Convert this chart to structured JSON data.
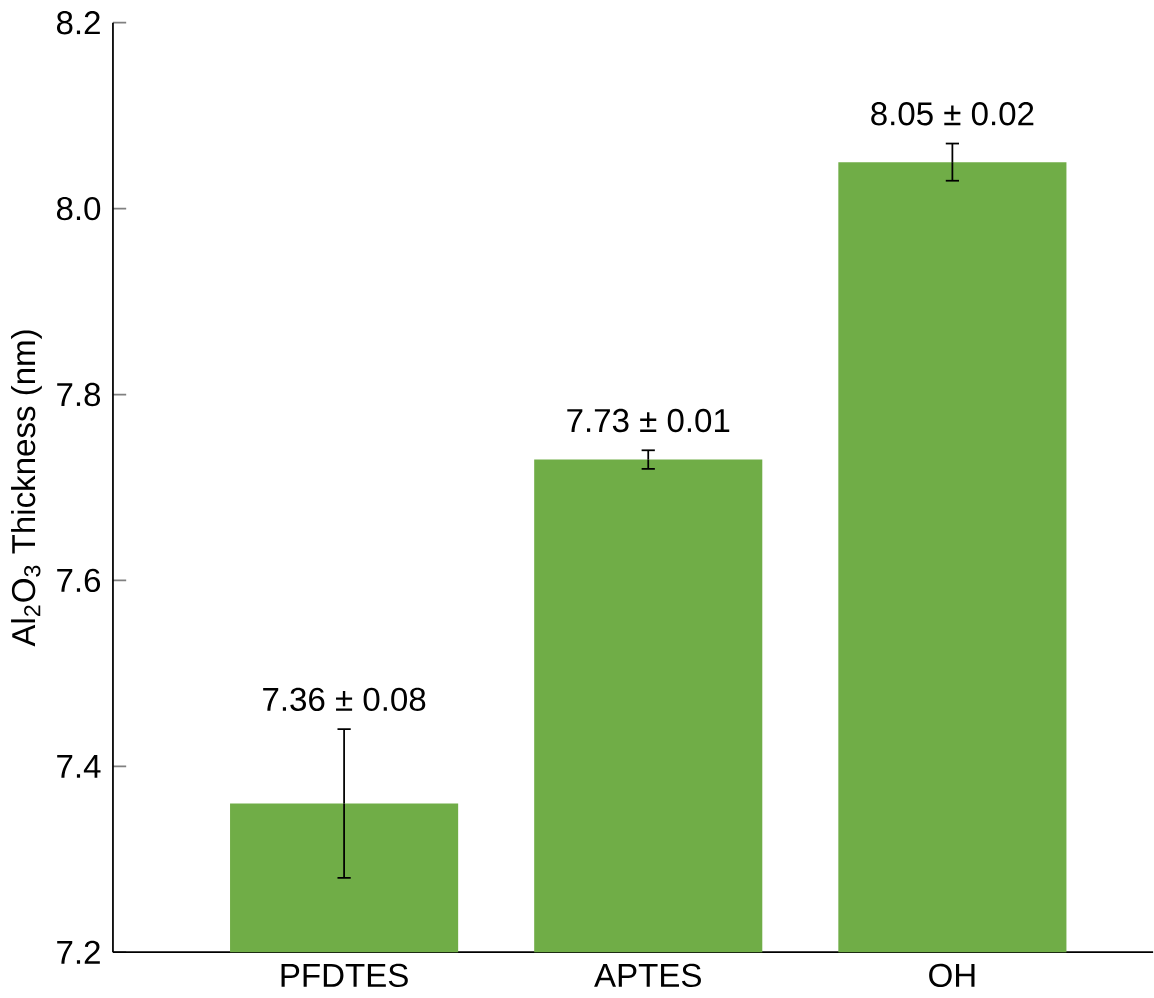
{
  "chart_data": {
    "type": "bar",
    "ylabel": "Al$_{2}$O$_{3}$ Thickness (nm)",
    "categories": [
      "PFDTES",
      "APTES",
      "OH"
    ],
    "values": [
      7.36,
      7.73,
      8.05
    ],
    "errors": [
      0.08,
      0.01,
      0.02
    ],
    "value_labels": [
      "7.36 ± 0.08",
      "7.73 ± 0.01",
      "8.05 ± 0.02"
    ],
    "color": "#70ad47",
    "ylim": [
      7.2,
      8.2
    ],
    "yticks": [
      7.2,
      7.4,
      7.6,
      7.8,
      {
        "value": 8,
        "label": "8.0"
      },
      8.2
    ]
  }
}
